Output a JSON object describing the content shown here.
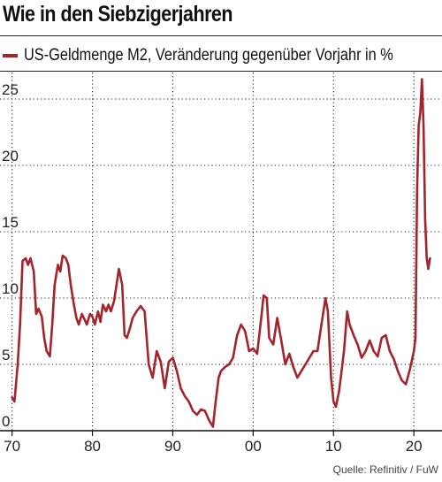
{
  "chart_data": {
    "type": "line",
    "title": "Wie in den Siebzigerjahren",
    "xlabel": "",
    "ylabel": "",
    "x_tick_labels": [
      "70",
      "80",
      "90",
      "00",
      "10",
      "20"
    ],
    "y_tick_labels": [
      "0",
      "5",
      "10",
      "15",
      "20",
      "25"
    ],
    "xlim": [
      1968.5,
      2023.5
    ],
    "ylim": [
      0,
      27
    ],
    "grid": true,
    "legend_position": "top-left",
    "series": [
      {
        "name": "US-Geldmenge M2, Veränderung gegenüber Vorjahr in %",
        "color": "#a3242b",
        "x": [
          1970.0,
          1970.3,
          1970.7,
          1971.0,
          1971.3,
          1971.7,
          1972.0,
          1972.3,
          1972.7,
          1973.0,
          1973.3,
          1973.7,
          1974.0,
          1974.3,
          1974.7,
          1975.0,
          1975.3,
          1975.7,
          1976.0,
          1976.3,
          1976.7,
          1977.0,
          1977.3,
          1977.7,
          1978.0,
          1978.3,
          1978.7,
          1979.0,
          1979.3,
          1979.7,
          1980.0,
          1980.3,
          1980.7,
          1981.0,
          1981.3,
          1981.7,
          1982.0,
          1982.3,
          1982.7,
          1983.0,
          1983.3,
          1983.7,
          1984.0,
          1984.3,
          1984.7,
          1985.0,
          1985.5,
          1986.0,
          1986.5,
          1987.0,
          1987.5,
          1988.0,
          1988.5,
          1989.0,
          1989.5,
          1990.0,
          1990.5,
          1991.0,
          1991.5,
          1992.0,
          1992.5,
          1993.0,
          1993.5,
          1994.0,
          1994.5,
          1995.0,
          1995.3,
          1995.7,
          1996.0,
          1996.5,
          1997.0,
          1997.5,
          1998.0,
          1998.5,
          1999.0,
          1999.5,
          2000.0,
          2000.5,
          2001.0,
          2001.3,
          2001.7,
          2002.0,
          2002.5,
          2003.0,
          2003.5,
          2004.0,
          2004.5,
          2005.0,
          2005.5,
          2006.0,
          2006.5,
          2007.0,
          2007.5,
          2008.0,
          2008.5,
          2009.0,
          2009.3,
          2009.7,
          2010.0,
          2010.3,
          2010.7,
          2011.0,
          2011.3,
          2011.7,
          2012.0,
          2012.5,
          2013.0,
          2013.5,
          2014.0,
          2014.5,
          2015.0,
          2015.5,
          2016.0,
          2016.5,
          2017.0,
          2017.5,
          2018.0,
          2018.5,
          2019.0,
          2019.5,
          2020.0,
          2020.2,
          2020.4,
          2020.6,
          2020.8,
          2021.0,
          2021.2,
          2021.4,
          2021.6,
          2021.8,
          2022.0
        ],
        "values": [
          2.5,
          2.2,
          5.0,
          8.0,
          12.8,
          13.0,
          12.5,
          13.0,
          12.0,
          8.8,
          9.2,
          8.6,
          7.0,
          6.0,
          5.6,
          8.0,
          11.0,
          12.5,
          12.0,
          13.2,
          13.0,
          12.5,
          11.0,
          9.5,
          8.5,
          8.0,
          8.8,
          8.4,
          8.0,
          8.8,
          8.6,
          8.0,
          9.0,
          8.2,
          9.5,
          9.0,
          9.5,
          9.0,
          9.8,
          11.0,
          12.2,
          11.0,
          7.2,
          7.0,
          7.8,
          8.5,
          9.0,
          9.4,
          9.0,
          5.0,
          4.0,
          6.0,
          5.2,
          3.2,
          5.2,
          5.5,
          4.5,
          3.2,
          2.6,
          2.2,
          1.5,
          1.2,
          1.6,
          1.5,
          0.8,
          0.3,
          2.0,
          4.0,
          4.5,
          4.8,
          5.0,
          5.5,
          7.2,
          8.0,
          7.5,
          6.0,
          6.2,
          5.8,
          8.5,
          10.2,
          10.0,
          7.0,
          6.5,
          8.5,
          6.8,
          5.0,
          5.8,
          4.8,
          4.0,
          4.5,
          5.0,
          5.5,
          6.0,
          6.0,
          8.0,
          10.0,
          9.0,
          4.0,
          2.2,
          1.8,
          3.0,
          4.5,
          6.0,
          9.0,
          8.0,
          7.2,
          6.5,
          5.5,
          6.0,
          6.8,
          6.0,
          5.6,
          7.0,
          7.2,
          6.0,
          5.4,
          4.5,
          3.8,
          3.5,
          4.6,
          6.0,
          7.0,
          18.0,
          23.0,
          24.0,
          26.5,
          23.0,
          16.0,
          13.0,
          12.2,
          13.0
        ]
      }
    ]
  },
  "source": "Quelle: Refinitiv / FuW"
}
